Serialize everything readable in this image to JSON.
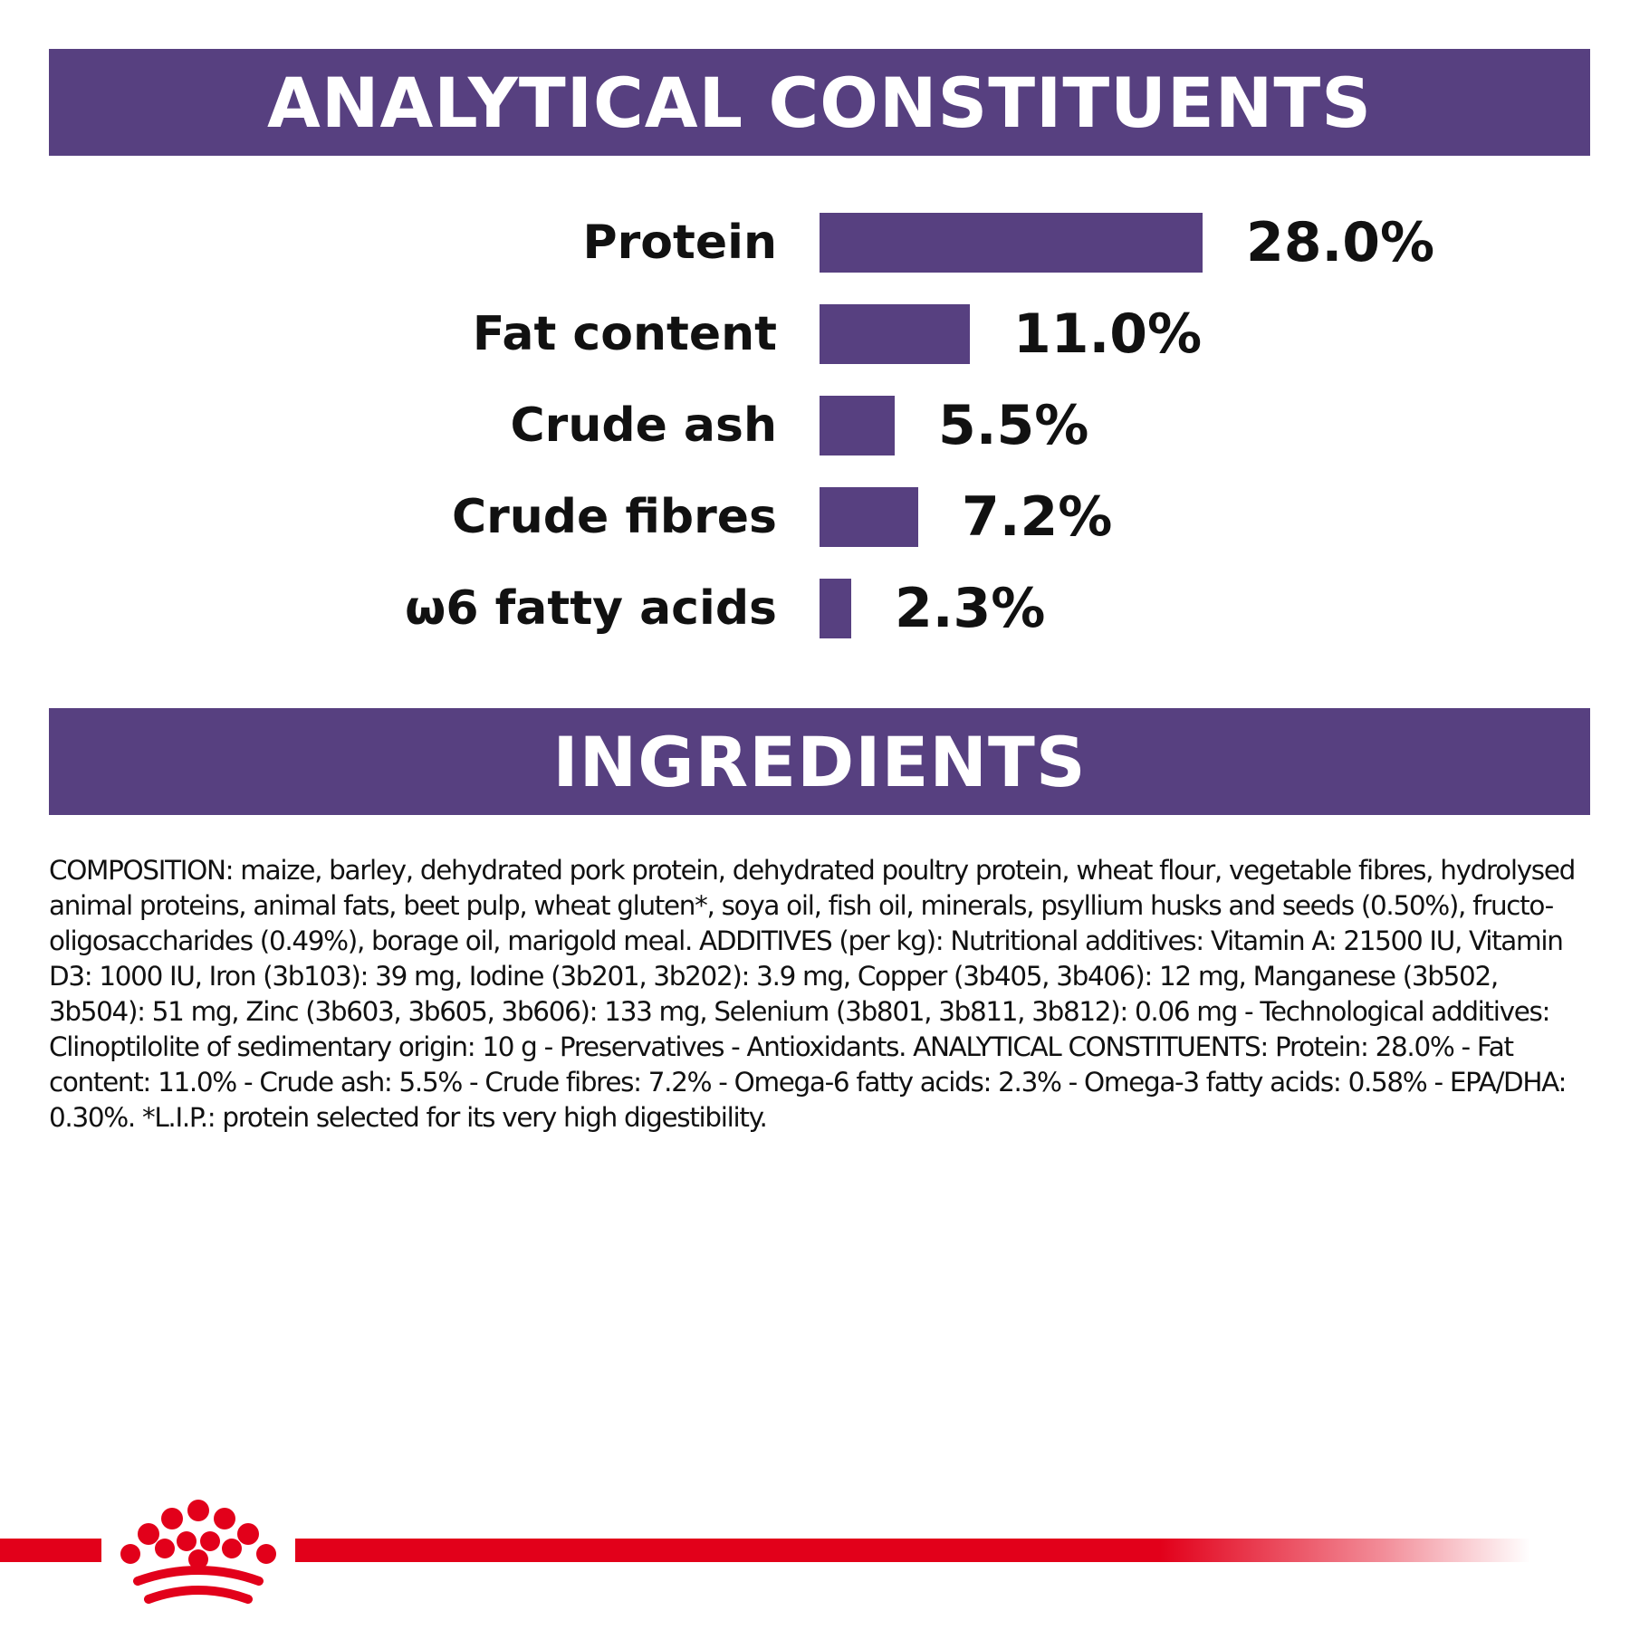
{
  "sections": {
    "analytical_title": "ANALYTICAL CONSTITUENTS",
    "ingredients_title": "INGREDIENTS"
  },
  "constituents": [
    {
      "label": "Protein",
      "value_text": "28.0%",
      "value": 28.0
    },
    {
      "label": "Fat content",
      "value_text": "11.0%",
      "value": 11.0
    },
    {
      "label": "Crude ash",
      "value_text": "5.5%",
      "value": 5.5
    },
    {
      "label": "Crude fibres",
      "value_text": "7.2%",
      "value": 7.2
    },
    {
      "label": "ω6 fatty acids",
      "value_text": "2.3%",
      "value": 2.3
    }
  ],
  "composition_text": "COMPOSITION: maize, barley, dehydrated pork protein, dehydrated poultry protein, wheat flour, vegetable fibres, hydrolysed animal proteins, animal fats, beet pulp, wheat gluten*, soya oil, fish oil, minerals, psyllium husks and seeds (0.50%), fructo-oligosaccharides (0.49%), borage oil, marigold meal. ADDITIVES (per kg): Nutritional additives: Vitamin A: 21500 IU, Vitamin D3: 1000 IU, Iron (3b103): 39 mg, Iodine (3b201, 3b202): 3.9 mg, Copper (3b405, 3b406): 12 mg, Manganese (3b502, 3b504): 51 mg, Zinc (3b603, 3b605, 3b606): 133 mg, Selenium (3b801, 3b811, 3b812): 0.06 mg - Technological additives: Clinoptilolite of sedimentary origin: 10 g - Preservatives - Antioxidants. ANALYTICAL CONSTITUENTS: Protein: 28.0% - Fat content: 11.0% - Crude ash: 5.5% - Crude fibres: 7.2% - Omega-6 fatty acids: 2.3% - Omega-3 fatty acids: 0.58% - EPA/DHA: 0.30%. *L.I.P.: protein selected for its very high digestibility.",
  "colors": {
    "brand_purple": "#574080",
    "brand_red": "#e2001a",
    "text": "#111111"
  },
  "logo": {
    "icon": "royal-canin-crown-icon"
  }
}
